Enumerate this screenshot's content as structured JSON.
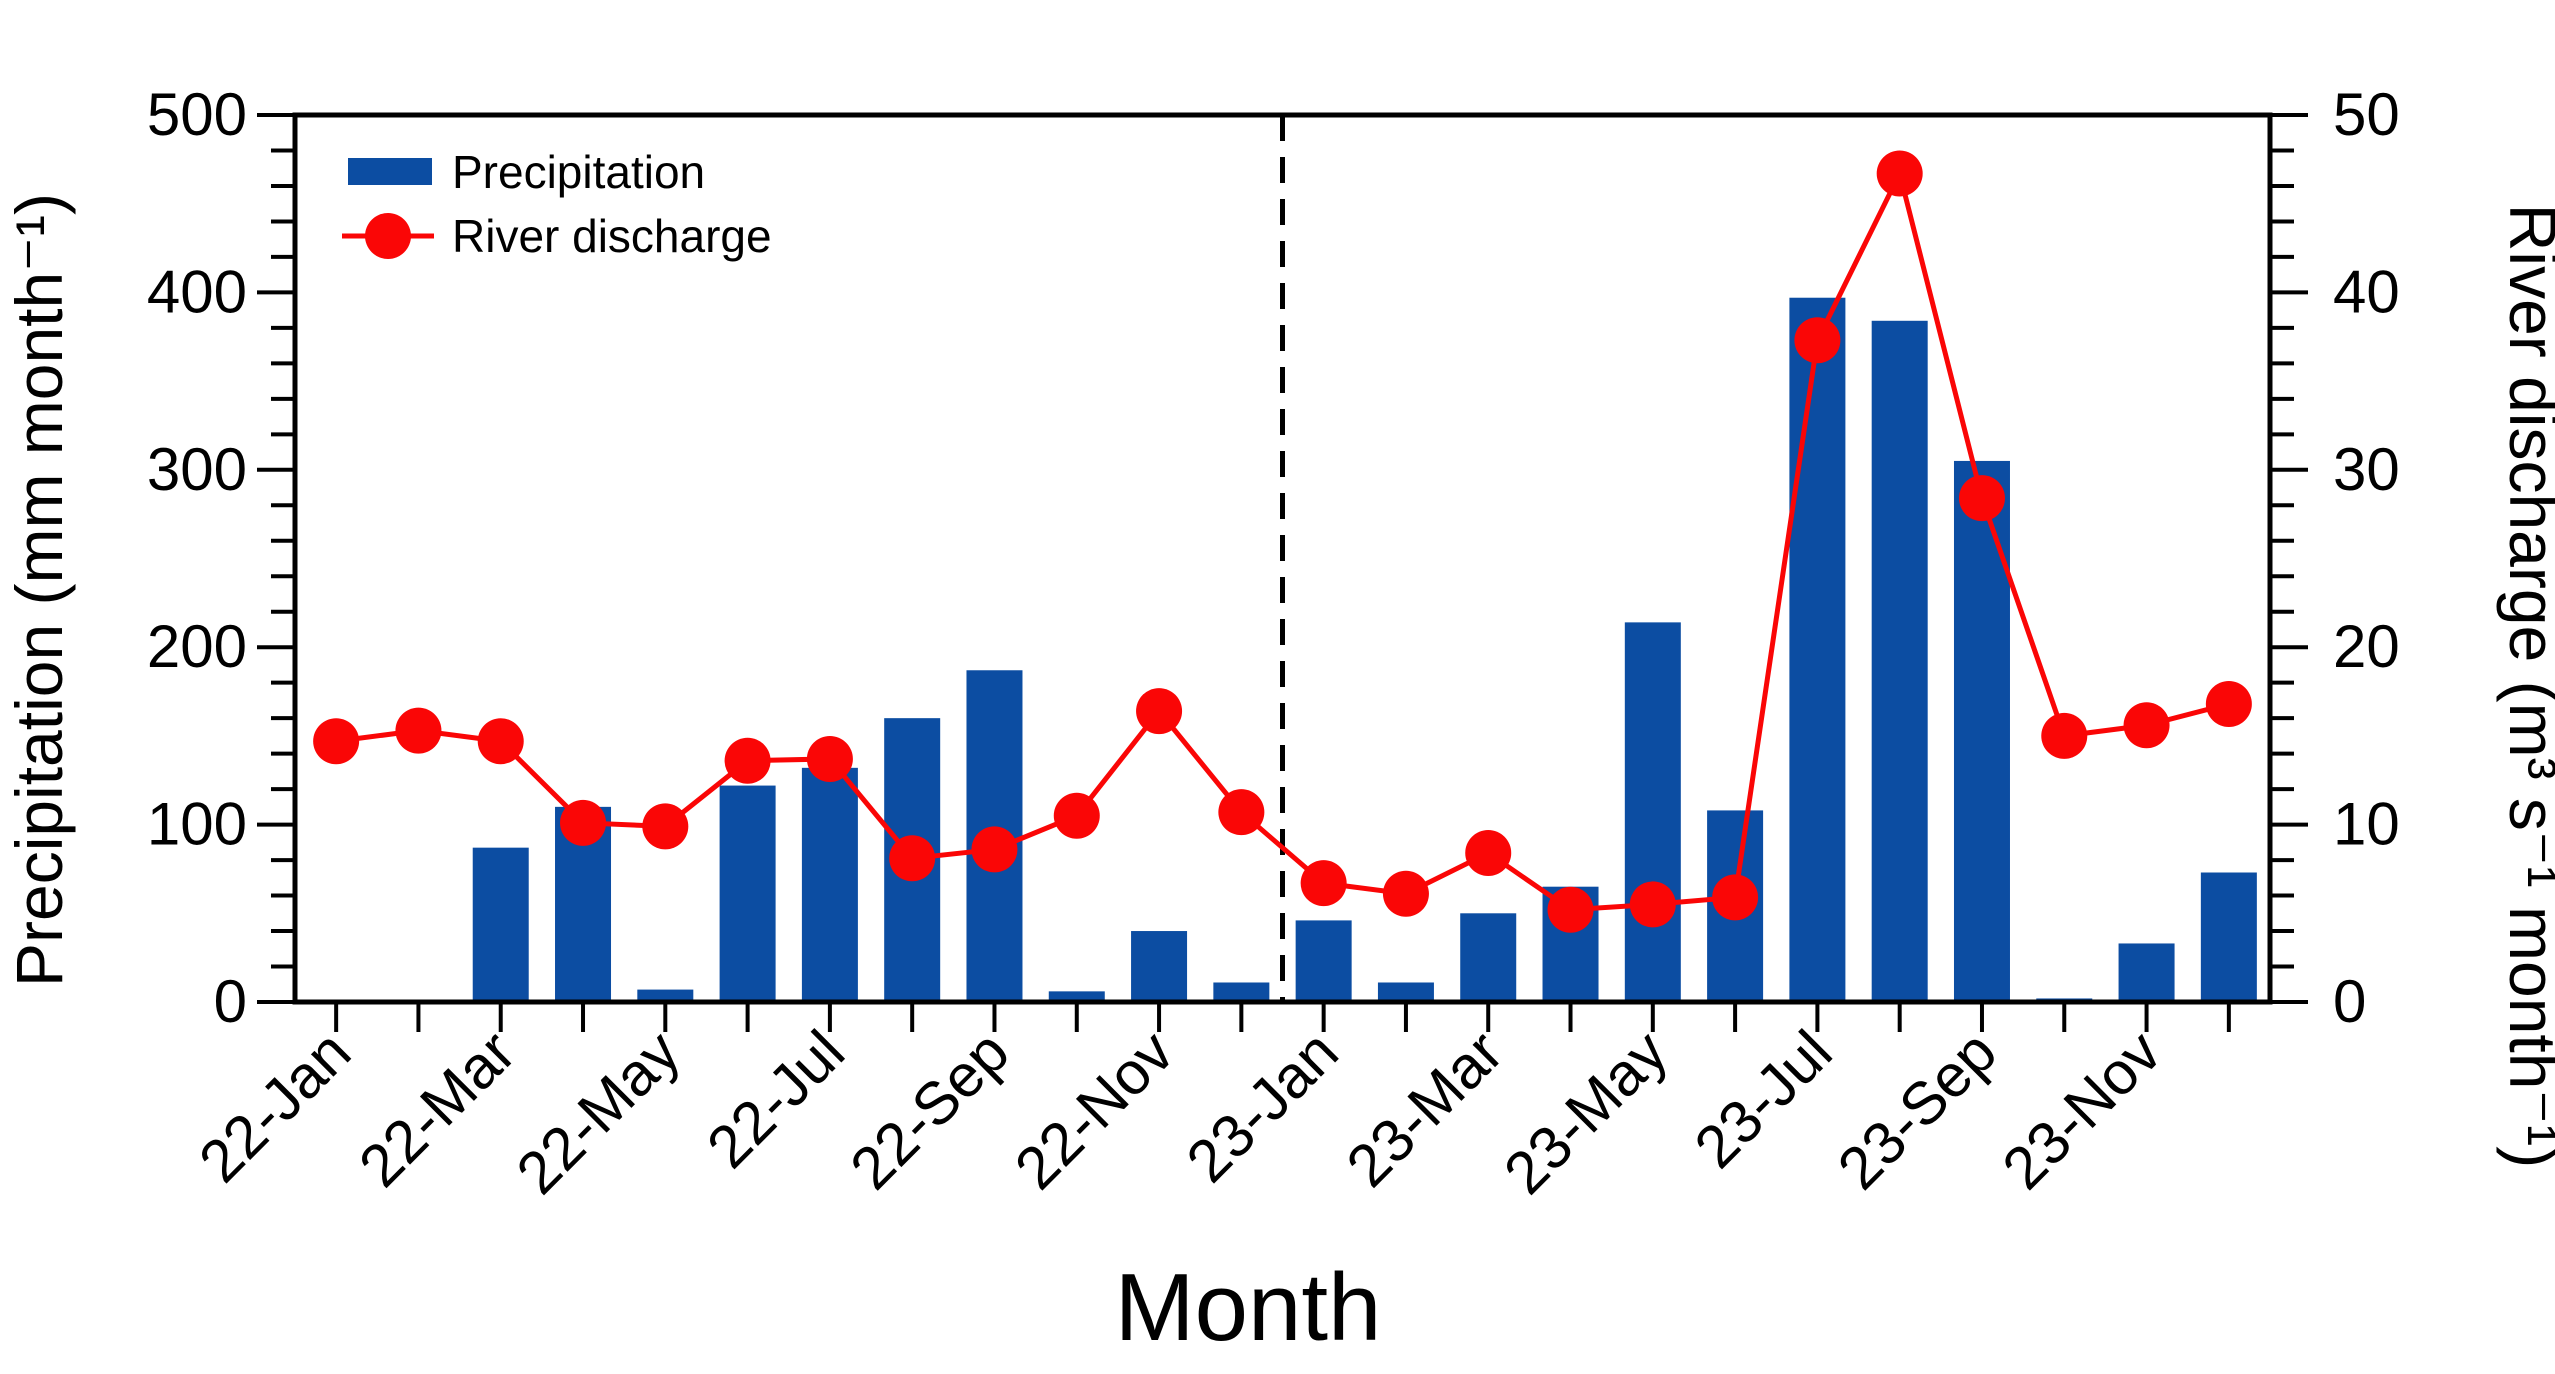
{
  "figure": {
    "background": "#ffffff"
  },
  "colors": {
    "bar": "#0c4da2",
    "line": "#fa0606",
    "marker": "#fa0606",
    "axis": "#000000",
    "divider": "#000000"
  },
  "legend": {
    "position": "top-left",
    "precipitation_label": "Precipitation",
    "discharge_label": "River discharge"
  },
  "chart_data": {
    "type": "bar",
    "subtype": "combo bar + line, dual y-axis",
    "title": "",
    "xlabel": "Month",
    "ylabel_left": "Precipitation (mm month⁻¹)",
    "ylabel_right": "River discharge (m³ s⁻¹ month⁻¹)",
    "categories": [
      "22-Jan",
      "22-Feb",
      "22-Mar",
      "22-Apr",
      "22-May",
      "22-Jun",
      "22-Jul",
      "22-Aug",
      "22-Sep",
      "22-Oct",
      "22-Nov",
      "22-Dec",
      "23-Jan",
      "23-Feb",
      "23-Mar",
      "23-Apr",
      "23-May",
      "23-Jun",
      "23-Jul",
      "23-Aug",
      "23-Sep",
      "23-Oct",
      "23-Nov",
      "23-Dec"
    ],
    "xtick_labels_shown": [
      "22-Jan",
      "22-Mar",
      "22-May",
      "22-Jul",
      "22-Sep",
      "22-Nov",
      "23-Jan",
      "23-Mar",
      "23-May",
      "23-Jul",
      "23-Sep",
      "23-Nov"
    ],
    "series": [
      {
        "name": "Precipitation",
        "type": "bar",
        "axis": "left",
        "values": [
          0,
          0,
          87,
          110,
          7,
          122,
          132,
          160,
          187,
          6,
          40,
          11,
          46,
          11,
          50,
          65,
          214,
          108,
          397,
          384,
          305,
          2,
          33,
          73
        ]
      },
      {
        "name": "River discharge",
        "type": "line",
        "axis": "right",
        "values": [
          14.7,
          15.3,
          14.7,
          10.1,
          9.9,
          13.6,
          13.7,
          8.1,
          8.6,
          10.5,
          16.4,
          10.7,
          6.7,
          6.1,
          8.4,
          5.2,
          5.5,
          5.9,
          37.3,
          46.7,
          28.4,
          15.0,
          15.6,
          16.8
        ]
      }
    ],
    "ylim_left": [
      0,
      500
    ],
    "ylim_right": [
      0,
      50
    ],
    "yticks_left": [
      0,
      100,
      200,
      300,
      400,
      500
    ],
    "yticks_right": [
      0,
      10,
      20,
      30,
      40,
      50
    ],
    "minor_step_left": 20,
    "minor_step_right": 2,
    "divider_after_category_index": 11,
    "grid": false,
    "legend_position": "top-left"
  }
}
